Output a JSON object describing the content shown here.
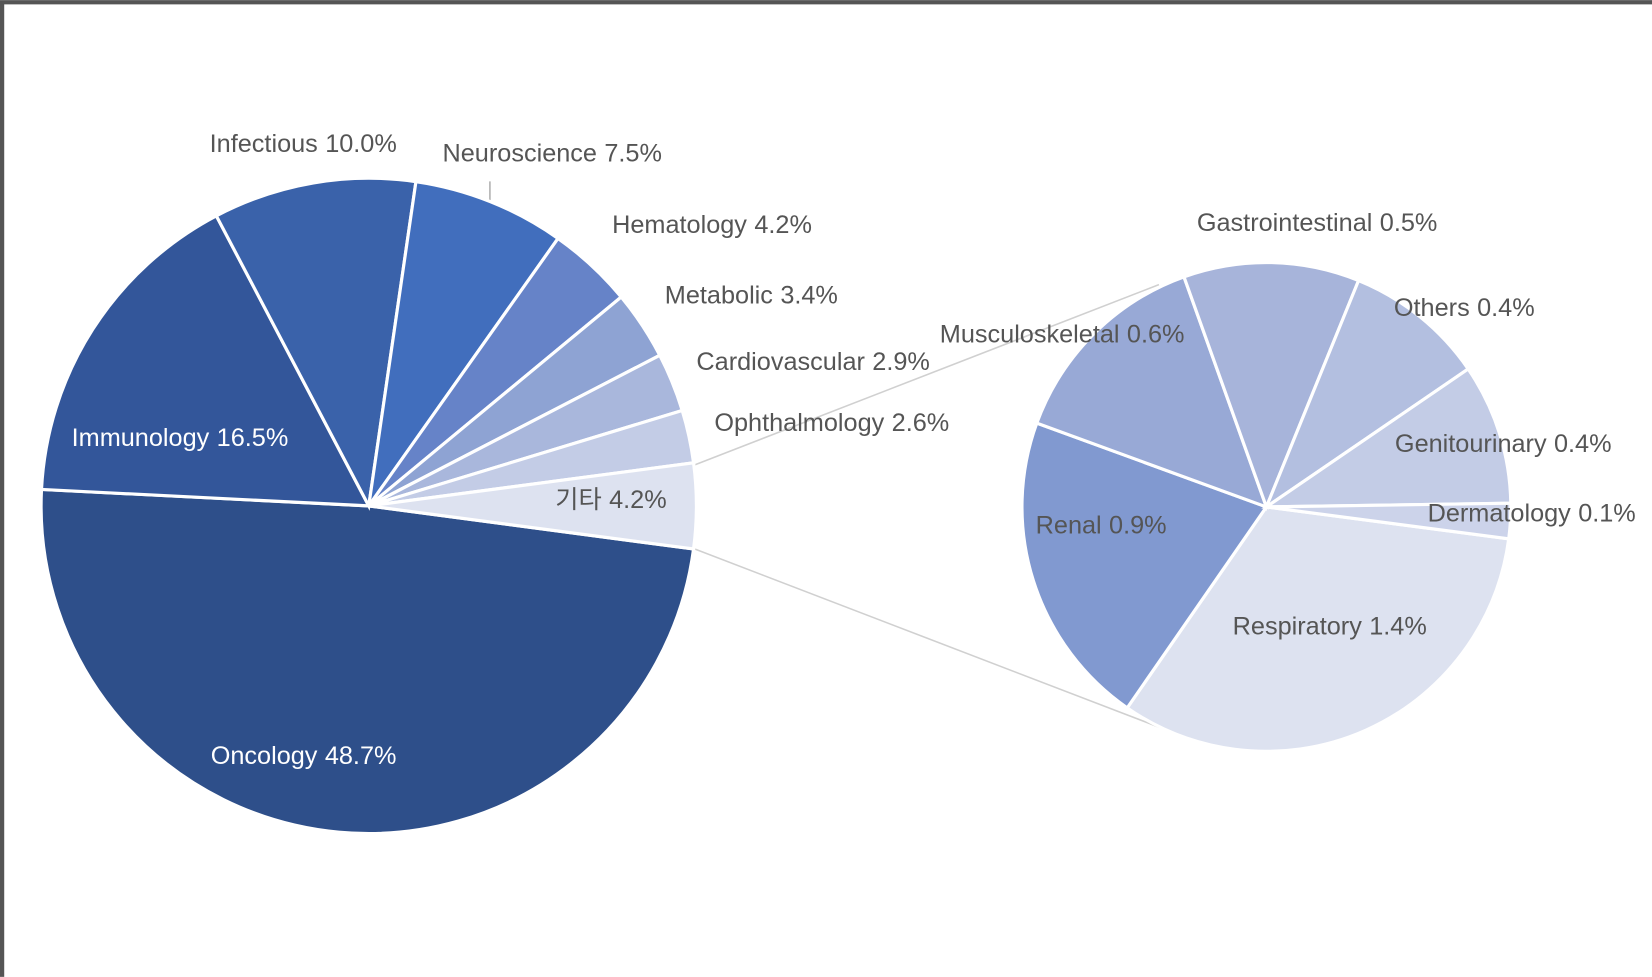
{
  "chart_data": [
    {
      "type": "pie",
      "categories": [
        "Oncology",
        "Immunology",
        "Infectious",
        "Neuroscience",
        "Hematology",
        "Metabolic",
        "Cardiovascular",
        "Ophthalmology",
        "기타"
      ],
      "values": [
        48.7,
        16.5,
        10.0,
        7.5,
        4.2,
        3.4,
        2.9,
        2.6,
        4.2
      ],
      "value_labels": [
        "48.7%",
        "16.5%",
        "10.0%",
        "7.5%",
        "4.2%",
        "3.4%",
        "2.9%",
        "2.6%",
        "4.2%"
      ],
      "colors": [
        "#2e4f8a",
        "#33569a",
        "#3a62aa",
        "#416ebd",
        "#6683c8",
        "#8ea3d3",
        "#a9b7dc",
        "#c3cce6",
        "#dde2f0"
      ]
    },
    {
      "type": "pie",
      "categories": [
        "Respiratory",
        "Renal",
        "Musculoskeletal",
        "Gastrointestinal",
        "Others",
        "Genitourinary",
        "Dermatology"
      ],
      "values": [
        1.4,
        0.9,
        0.6,
        0.5,
        0.4,
        0.4,
        0.1
      ],
      "value_labels": [
        "1.4%",
        "0.9%",
        "0.6%",
        "0.5%",
        "0.4%",
        "0.4%",
        "0.1%"
      ],
      "colors": [
        "#dde2f0",
        "#8199d0",
        "#98a9d6",
        "#a7b4da",
        "#b3bfe0",
        "#c3cce6",
        "#ccd3ea"
      ]
    }
  ]
}
